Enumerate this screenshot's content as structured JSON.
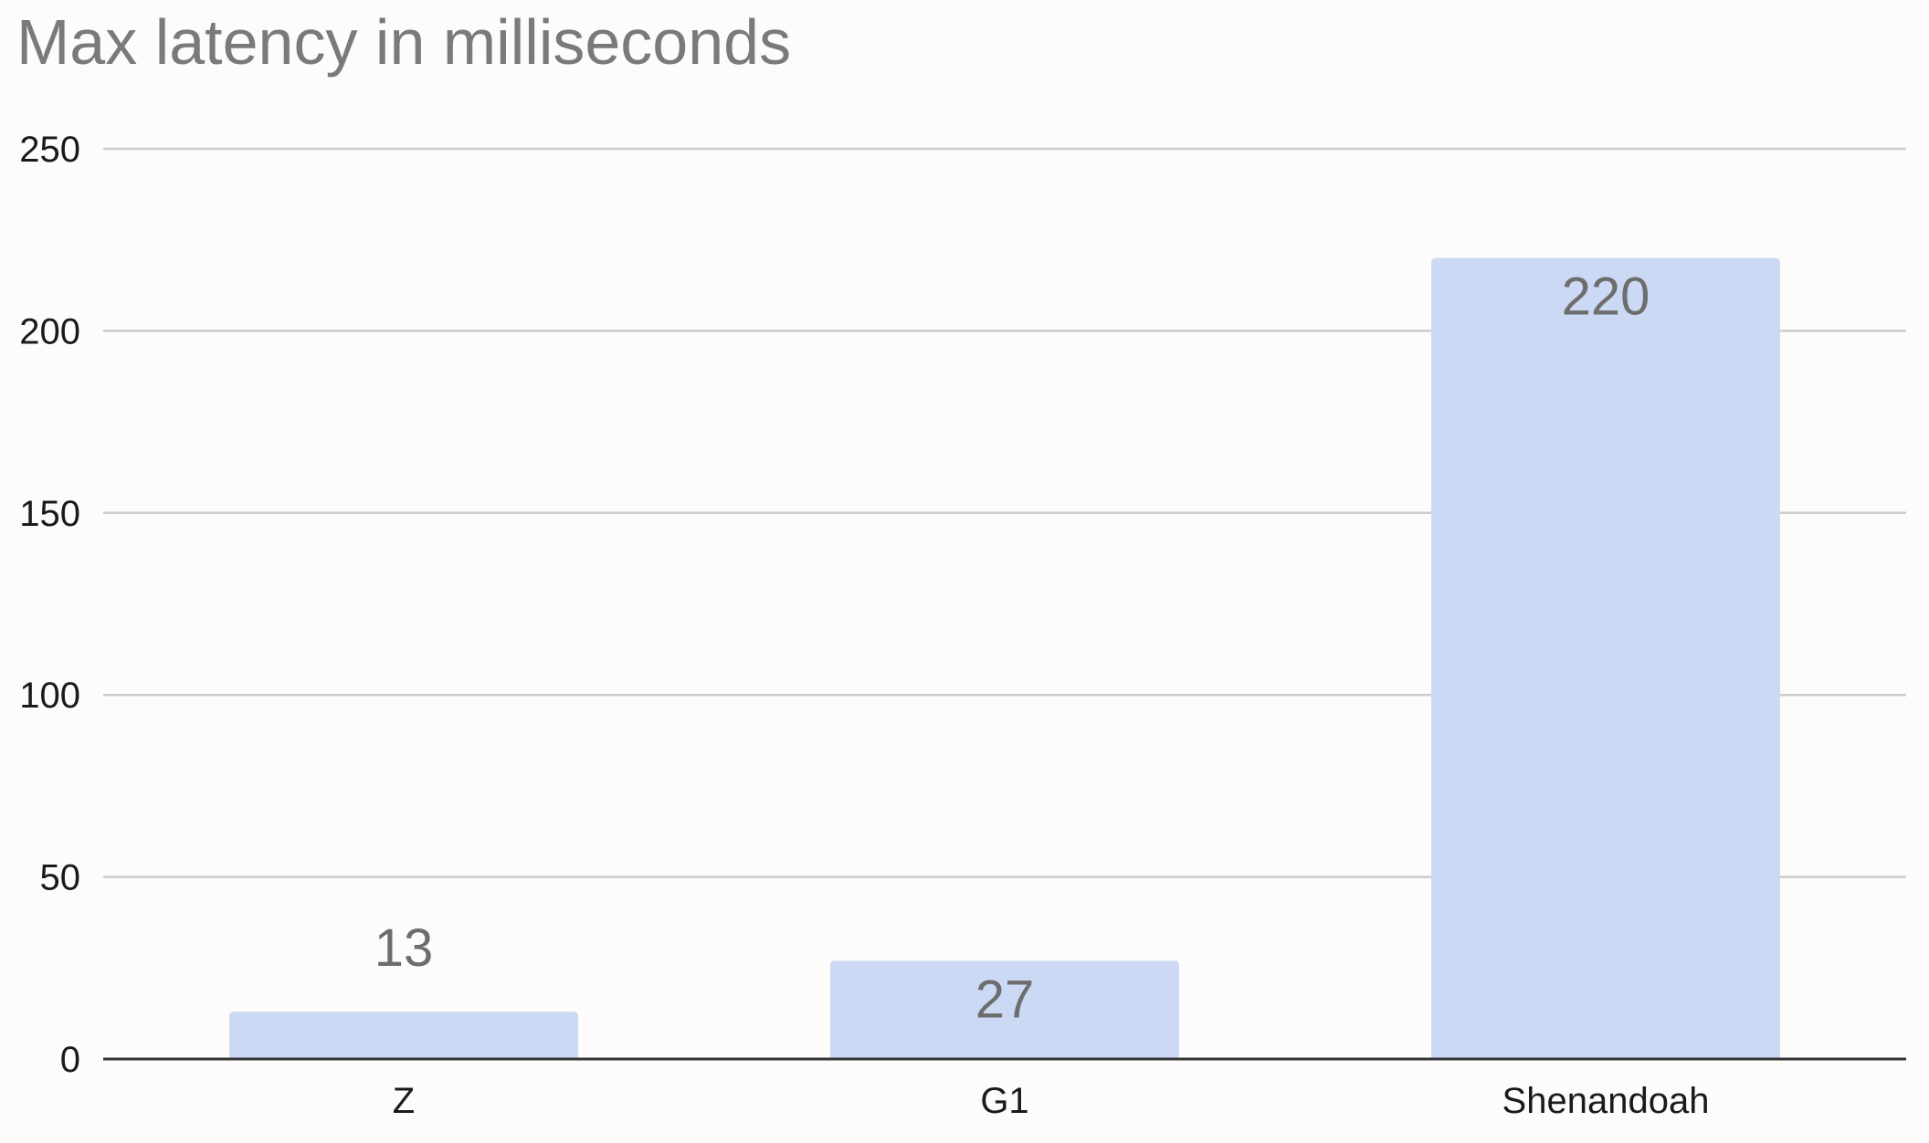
{
  "chart_data": {
    "type": "bar",
    "title": "Max latency in milliseconds",
    "categories": [
      "Z",
      "G1",
      "Shenandoah"
    ],
    "values": [
      13,
      27,
      220
    ],
    "data_labels": [
      "13",
      "27",
      "220"
    ],
    "xlabel": "",
    "ylabel": "",
    "ylim": [
      0,
      250
    ],
    "yticks": [
      0,
      50,
      100,
      150,
      200,
      250
    ],
    "ytick_labels": [
      "0",
      "50",
      "100",
      "150",
      "200",
      "250"
    ],
    "grid": true,
    "legend": "none",
    "colors": {
      "bar": "#cbd9f4",
      "grid": "#cccccc",
      "axis": "#333333",
      "title": "#7a7a7a",
      "data_label": "#6d6d6d",
      "tick_label": "#1a1a1a"
    }
  }
}
